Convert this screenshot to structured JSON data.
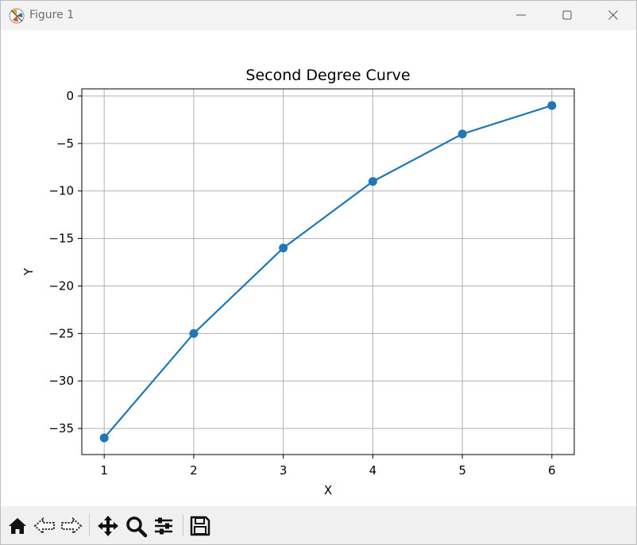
{
  "window": {
    "title": "Figure 1",
    "icon": "matplotlib-icon",
    "controls": [
      "minimize-icon",
      "maximize-icon",
      "close-icon"
    ]
  },
  "chart_data": {
    "type": "line",
    "title": "Second Degree Curve",
    "xlabel": "X",
    "ylabel": "Y",
    "x": [
      1,
      2,
      3,
      4,
      5,
      6
    ],
    "series": [
      {
        "values": [
          -36,
          -25,
          -16,
          -9,
          -4,
          -1
        ],
        "markers": true,
        "color": "#1f77b4"
      }
    ],
    "xticks": [
      1,
      2,
      3,
      4,
      5,
      6
    ],
    "yticks": [
      0,
      -5,
      -10,
      -15,
      -20,
      -25,
      -30,
      -35
    ],
    "xtick_labels": [
      "1",
      "2",
      "3",
      "4",
      "5",
      "6"
    ],
    "ytick_labels": [
      "0",
      "−5",
      "−10",
      "−15",
      "−20",
      "−25",
      "−30",
      "−35"
    ],
    "xlim": [
      0.75,
      6.25
    ],
    "ylim": [
      -37.75,
      0.75
    ],
    "grid": true
  },
  "toolbar": {
    "items": [
      "home-icon",
      "back-arrow-icon",
      "forward-arrow-icon",
      "pan-icon",
      "zoom-icon",
      "configure-subplots-icon",
      "save-icon"
    ]
  }
}
